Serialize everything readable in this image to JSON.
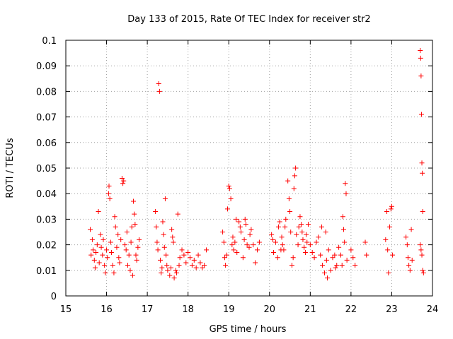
{
  "chart_data": {
    "type": "scatter",
    "title": "Day 133 of 2015, Rate Of TEC Index for receiver str2",
    "xlabel": "GPS time / hours",
    "ylabel": "ROTI / TECUs",
    "xlim": [
      15,
      24
    ],
    "ylim": [
      0,
      0.1
    ],
    "x_ticks": [
      "15",
      "16",
      "17",
      "18",
      "19",
      "20",
      "21",
      "22",
      "23",
      "24"
    ],
    "y_ticks": [
      "0",
      "0.01",
      "0.02",
      "0.03",
      "0.04",
      "0.05",
      "0.06",
      "0.07",
      "0.08",
      "0.09",
      "0.1"
    ],
    "grid": true,
    "marker": "+",
    "marker_color": "#ff0000",
    "series": [
      {
        "points": [
          [
            15.6,
            0.026
          ],
          [
            15.62,
            0.016
          ],
          [
            15.65,
            0.022
          ],
          [
            15.67,
            0.018
          ],
          [
            15.7,
            0.014
          ],
          [
            15.72,
            0.011
          ],
          [
            15.74,
            0.017
          ],
          [
            15.77,
            0.02
          ],
          [
            15.8,
            0.033
          ],
          [
            15.82,
            0.013
          ],
          [
            15.85,
            0.024
          ],
          [
            15.87,
            0.019
          ],
          [
            15.9,
            0.016
          ],
          [
            15.92,
            0.022
          ],
          [
            15.95,
            0.012
          ],
          [
            15.97,
            0.009
          ],
          [
            16.0,
            0.018
          ],
          [
            16.02,
            0.015
          ],
          [
            16.05,
            0.04
          ],
          [
            16.06,
            0.043
          ],
          [
            16.08,
            0.038
          ],
          [
            16.1,
            0.021
          ],
          [
            16.12,
            0.017
          ],
          [
            16.15,
            0.012
          ],
          [
            16.18,
            0.009
          ],
          [
            16.2,
            0.031
          ],
          [
            16.22,
            0.027
          ],
          [
            16.25,
            0.019
          ],
          [
            16.28,
            0.024
          ],
          [
            16.3,
            0.015
          ],
          [
            16.32,
            0.013
          ],
          [
            16.35,
            0.022
          ],
          [
            16.38,
            0.046
          ],
          [
            16.4,
            0.044
          ],
          [
            16.42,
            0.045
          ],
          [
            16.45,
            0.02
          ],
          [
            16.48,
            0.018
          ],
          [
            16.5,
            0.025
          ],
          [
            16.52,
            0.012
          ],
          [
            16.55,
            0.016
          ],
          [
            16.58,
            0.01
          ],
          [
            16.6,
            0.021
          ],
          [
            16.62,
            0.027
          ],
          [
            16.64,
            0.008
          ],
          [
            16.66,
            0.037
          ],
          [
            16.68,
            0.032
          ],
          [
            16.7,
            0.028
          ],
          [
            16.72,
            0.016
          ],
          [
            16.74,
            0.014
          ],
          [
            16.77,
            0.019
          ],
          [
            16.8,
            0.022
          ],
          [
            17.2,
            0.033
          ],
          [
            17.22,
            0.027
          ],
          [
            17.24,
            0.021
          ],
          [
            17.26,
            0.018
          ],
          [
            17.28,
            0.083
          ],
          [
            17.3,
            0.08
          ],
          [
            17.32,
            0.014
          ],
          [
            17.34,
            0.009
          ],
          [
            17.36,
            0.011
          ],
          [
            17.38,
            0.029
          ],
          [
            17.4,
            0.024
          ],
          [
            17.42,
            0.019
          ],
          [
            17.44,
            0.038
          ],
          [
            17.46,
            0.016
          ],
          [
            17.48,
            0.012
          ],
          [
            17.5,
            0.01
          ],
          [
            17.55,
            0.008
          ],
          [
            17.58,
            0.011
          ],
          [
            17.6,
            0.026
          ],
          [
            17.62,
            0.023
          ],
          [
            17.64,
            0.021
          ],
          [
            17.66,
            0.007
          ],
          [
            17.7,
            0.01
          ],
          [
            17.72,
            0.009
          ],
          [
            17.75,
            0.032
          ],
          [
            17.78,
            0.012
          ],
          [
            17.8,
            0.015
          ],
          [
            17.85,
            0.018
          ],
          [
            17.9,
            0.016
          ],
          [
            17.95,
            0.013
          ],
          [
            18.0,
            0.017
          ],
          [
            18.05,
            0.015
          ],
          [
            18.1,
            0.012
          ],
          [
            18.15,
            0.014
          ],
          [
            18.2,
            0.011
          ],
          [
            18.25,
            0.016
          ],
          [
            18.3,
            0.013
          ],
          [
            18.35,
            0.011
          ],
          [
            18.4,
            0.012
          ],
          [
            18.45,
            0.018
          ],
          [
            18.85,
            0.025
          ],
          [
            18.88,
            0.021
          ],
          [
            18.9,
            0.015
          ],
          [
            18.92,
            0.012
          ],
          [
            18.95,
            0.016
          ],
          [
            18.97,
            0.034
          ],
          [
            19.0,
            0.043
          ],
          [
            19.02,
            0.042
          ],
          [
            19.05,
            0.038
          ],
          [
            19.08,
            0.02
          ],
          [
            19.1,
            0.023
          ],
          [
            19.12,
            0.018
          ],
          [
            19.15,
            0.021
          ],
          [
            19.18,
            0.03
          ],
          [
            19.2,
            0.017
          ],
          [
            19.25,
            0.029
          ],
          [
            19.28,
            0.027
          ],
          [
            19.3,
            0.025
          ],
          [
            19.35,
            0.015
          ],
          [
            19.38,
            0.022
          ],
          [
            19.4,
            0.03
          ],
          [
            19.42,
            0.028
          ],
          [
            19.45,
            0.02
          ],
          [
            19.5,
            0.019
          ],
          [
            19.52,
            0.024
          ],
          [
            19.55,
            0.026
          ],
          [
            19.6,
            0.02
          ],
          [
            19.65,
            0.013
          ],
          [
            19.7,
            0.018
          ],
          [
            19.75,
            0.021
          ],
          [
            20.05,
            0.024
          ],
          [
            20.08,
            0.022
          ],
          [
            20.1,
            0.017
          ],
          [
            20.15,
            0.021
          ],
          [
            20.2,
            0.015
          ],
          [
            20.22,
            0.027
          ],
          [
            20.25,
            0.029
          ],
          [
            20.28,
            0.018
          ],
          [
            20.3,
            0.023
          ],
          [
            20.32,
            0.02
          ],
          [
            20.35,
            0.018
          ],
          [
            20.38,
            0.027
          ],
          [
            20.4,
            0.03
          ],
          [
            20.45,
            0.045
          ],
          [
            20.48,
            0.038
          ],
          [
            20.5,
            0.033
          ],
          [
            20.52,
            0.025
          ],
          [
            20.55,
            0.012
          ],
          [
            20.58,
            0.015
          ],
          [
            20.6,
            0.042
          ],
          [
            20.62,
            0.047
          ],
          [
            20.64,
            0.05
          ],
          [
            20.66,
            0.024
          ],
          [
            20.7,
            0.02
          ],
          [
            20.72,
            0.027
          ],
          [
            20.75,
            0.031
          ],
          [
            20.78,
            0.028
          ],
          [
            20.8,
            0.025
          ],
          [
            20.82,
            0.022
          ],
          [
            20.85,
            0.019
          ],
          [
            20.88,
            0.017
          ],
          [
            20.9,
            0.024
          ],
          [
            20.92,
            0.021
          ],
          [
            20.95,
            0.028
          ],
          [
            21.0,
            0.02
          ],
          [
            21.05,
            0.017
          ],
          [
            21.1,
            0.015
          ],
          [
            21.15,
            0.021
          ],
          [
            21.2,
            0.023
          ],
          [
            21.25,
            0.016
          ],
          [
            21.28,
            0.027
          ],
          [
            21.3,
            0.012
          ],
          [
            21.35,
            0.009
          ],
          [
            21.38,
            0.025
          ],
          [
            21.4,
            0.014
          ],
          [
            21.42,
            0.007
          ],
          [
            21.45,
            0.018
          ],
          [
            21.5,
            0.01
          ],
          [
            21.55,
            0.015
          ],
          [
            21.6,
            0.016
          ],
          [
            21.62,
            0.011
          ],
          [
            21.65,
            0.012
          ],
          [
            21.7,
            0.019
          ],
          [
            21.75,
            0.016
          ],
          [
            21.78,
            0.012
          ],
          [
            21.8,
            0.031
          ],
          [
            21.82,
            0.026
          ],
          [
            21.84,
            0.021
          ],
          [
            21.86,
            0.044
          ],
          [
            21.88,
            0.04
          ],
          [
            21.9,
            0.014
          ],
          [
            22.0,
            0.018
          ],
          [
            22.05,
            0.015
          ],
          [
            22.1,
            0.012
          ],
          [
            22.35,
            0.021
          ],
          [
            22.38,
            0.016
          ],
          [
            22.85,
            0.022
          ],
          [
            22.88,
            0.033
          ],
          [
            22.9,
            0.018
          ],
          [
            22.92,
            0.009
          ],
          [
            22.95,
            0.027
          ],
          [
            22.98,
            0.034
          ],
          [
            23.0,
            0.035
          ],
          [
            23.02,
            0.016
          ],
          [
            23.35,
            0.023
          ],
          [
            23.38,
            0.02
          ],
          [
            23.4,
            0.015
          ],
          [
            23.42,
            0.012
          ],
          [
            23.45,
            0.01
          ],
          [
            23.48,
            0.026
          ],
          [
            23.5,
            0.014
          ],
          [
            23.7,
            0.096
          ],
          [
            23.71,
            0.093
          ],
          [
            23.72,
            0.086
          ],
          [
            23.73,
            0.071
          ],
          [
            23.74,
            0.052
          ],
          [
            23.75,
            0.048
          ],
          [
            23.76,
            0.033
          ],
          [
            23.7,
            0.02
          ],
          [
            23.72,
            0.018
          ],
          [
            23.74,
            0.016
          ],
          [
            23.76,
            0.01
          ],
          [
            23.78,
            0.009
          ]
        ]
      }
    ]
  }
}
